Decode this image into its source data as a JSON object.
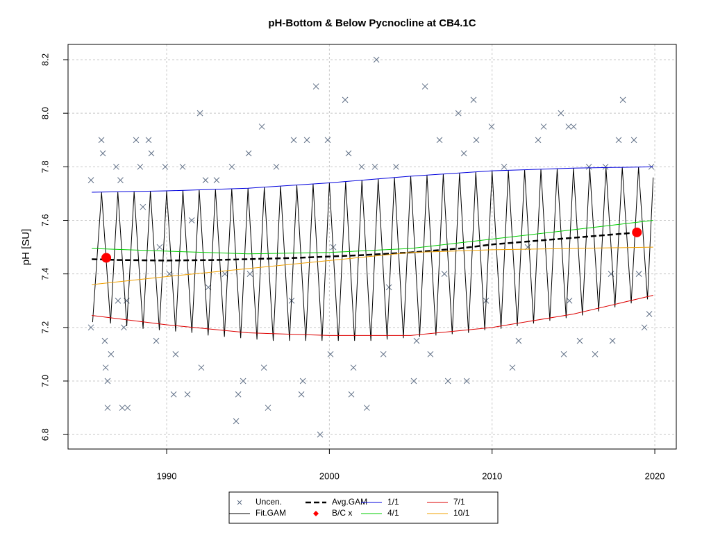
{
  "chart_data": {
    "type": "scatter",
    "title": "pH-Bottom & Below Pycnocline at CB4.1C",
    "y_label": "pH [SU]",
    "xlim": [
      1983.94,
      2021.32
    ],
    "ylim": [
      6.746,
      8.257
    ],
    "xticks": [
      1990,
      2000,
      2010,
      2020
    ],
    "yticks": [
      6.8,
      {
        "value": 7,
        "label": "7.0"
      },
      7.2,
      7.4,
      7.6,
      7.8,
      {
        "value": 8,
        "label": "8.0"
      },
      8.2
    ],
    "grid": true,
    "legend": "bottom",
    "series": [
      {
        "name": "Uncen.",
        "type": "scatter",
        "marker": "x",
        "color": "#5f6f86",
        "x": [
          1985.35,
          1985.35,
          1985.99,
          1986.08,
          1986.25,
          1986.37,
          1986.2,
          1986.58,
          1986.9,
          1987.16,
          1987.37,
          1987.54,
          1988.12,
          1988.37,
          1988.54,
          1988.89,
          1989.06,
          1989.36,
          1989.91,
          1990.17,
          1990.43,
          1990.55,
          1990.98,
          1991.28,
          1991.54,
          1992.13,
          1992.39,
          1993.07,
          1993.58,
          1994.01,
          1994.4,
          1994.7,
          1995.04,
          1995.85,
          1995.98,
          1996.74,
          1997.81,
          1998.28,
          1998.37,
          1998.62,
          1999.9,
          2000.07,
          1999.43,
          2002.89,
          2005.88,
          1999.18,
          1992.05,
          1994.27,
          1986.37,
          1987.27,
          1987.6,
          1996.23,
          2002.3,
          2000.97,
          2001.18,
          2001.35,
          2001.48,
          2001.99,
          2002.8,
          2003.32,
          2004.1,
          2005.19,
          2005.36,
          2006.21,
          2006.77,
          2007.29,
          2007.93,
          2008.27,
          2008.44,
          2008.86,
          2009.03,
          2009.97,
          2010.74,
          2011.25,
          2011.63,
          2012.83,
          2013.17,
          2014.23,
          2014.7,
          2014.41,
          2015.01,
          2015.39,
          2015.95,
          2016.33,
          2016.97,
          2017.4,
          2017.78,
          2018.04,
          2018.72,
          2019.02,
          2019.36,
          2019.66,
          2019.79,
          1987.01,
          1989.57,
          1992.56,
          1995.12,
          1997.68,
          2000.24,
          2003.66,
          2007.07,
          2009.63,
          2012.19,
          2014.75,
          2017.31
        ],
        "values": [
          7.75,
          7.2,
          7.9,
          7.85,
          7.05,
          7.0,
          7.15,
          7.1,
          7.8,
          7.75,
          7.2,
          7.3,
          7.9,
          7.8,
          7.65,
          7.9,
          7.85,
          7.15,
          7.8,
          7.4,
          6.95,
          7.1,
          7.8,
          6.95,
          7.6,
          7.05,
          7.75,
          7.75,
          7.4,
          7.8,
          6.95,
          7.0,
          7.85,
          7.95,
          7.05,
          7.8,
          7.9,
          6.95,
          7.0,
          7.9,
          7.9,
          7.1,
          6.8,
          8.2,
          8.1,
          8.1,
          8.0,
          6.85,
          6.9,
          6.9,
          6.9,
          6.9,
          6.9,
          8.05,
          7.85,
          6.95,
          7.05,
          7.8,
          7.8,
          7.1,
          7.8,
          7.0,
          7.15,
          7.1,
          7.9,
          7.0,
          8.0,
          7.85,
          7.0,
          8.05,
          7.9,
          7.95,
          7.8,
          7.05,
          7.15,
          7.9,
          7.95,
          8.0,
          7.95,
          7.1,
          7.95,
          7.15,
          7.8,
          7.1,
          7.8,
          7.15,
          7.9,
          8.05,
          7.9,
          7.4,
          7.2,
          7.25,
          7.8,
          7.3,
          7.5,
          7.35,
          7.4,
          7.3,
          7.5,
          7.35,
          7.4,
          7.3,
          7.5,
          7.3,
          7.4
        ]
      },
      {
        "name": "Fit.GAM",
        "type": "line",
        "width": 1,
        "color": "#000000",
        "x": [
          1985.45,
          1986,
          1986.55,
          1987,
          1987.55,
          1988,
          1988.55,
          1989,
          1989.55,
          1990,
          1990.55,
          1991,
          1991.55,
          1992,
          1992.55,
          1993,
          1993.55,
          1994,
          1994.55,
          1995,
          1995.55,
          1996,
          1996.55,
          1997,
          1997.55,
          1998,
          1998.55,
          1999,
          1999.55,
          2000,
          2000.55,
          2001,
          2001.55,
          2002,
          2002.55,
          2003,
          2003.55,
          2004,
          2004.55,
          2005,
          2005.55,
          2006,
          2006.55,
          2007,
          2007.55,
          2008,
          2008.55,
          2009,
          2009.55,
          2010,
          2010.55,
          2011,
          2011.55,
          2012,
          2012.55,
          2013,
          2013.55,
          2014,
          2014.55,
          2015,
          2015.55,
          2016,
          2016.55,
          2017,
          2017.55,
          2018,
          2018.55,
          2019,
          2019.55,
          2019.9
        ],
        "values": [
          7.22,
          7.705,
          7.215,
          7.706,
          7.205,
          7.707,
          7.195,
          7.709,
          7.19,
          7.71,
          7.185,
          7.712,
          7.18,
          7.714,
          7.17,
          7.716,
          7.165,
          7.718,
          7.16,
          7.72,
          7.155,
          7.724,
          7.15,
          7.728,
          7.15,
          7.732,
          7.15,
          7.736,
          7.15,
          7.74,
          7.15,
          7.745,
          7.15,
          7.75,
          7.15,
          7.755,
          7.155,
          7.76,
          7.16,
          7.765,
          7.165,
          7.769,
          7.17,
          7.773,
          7.175,
          7.777,
          7.18,
          7.781,
          7.19,
          7.785,
          7.195,
          7.787,
          7.205,
          7.789,
          7.215,
          7.791,
          7.225,
          7.793,
          7.235,
          7.795,
          7.245,
          7.796,
          7.26,
          7.797,
          7.275,
          7.798,
          7.29,
          7.799,
          7.305,
          7.76
        ]
      },
      {
        "name": "Avg.GAM",
        "type": "line",
        "width": 2.5,
        "dash": true,
        "color": "#000000",
        "x": [
          1985.4,
          1987,
          1990,
          1993,
          1995,
          1998,
          2000,
          2002,
          2005,
          2008,
          2010,
          2013,
          2015,
          2017,
          2019
        ],
        "values": [
          7.455,
          7.452,
          7.45,
          7.452,
          7.455,
          7.46,
          7.465,
          7.47,
          7.48,
          7.495,
          7.51,
          7.525,
          7.535,
          7.545,
          7.555
        ]
      },
      {
        "name": "B/C x",
        "type": "scatter",
        "marker": "dot",
        "color": "#ff0000",
        "x": [
          1986.29,
          2018.9
        ],
        "values": [
          7.46,
          7.555
        ]
      },
      {
        "name": "1/1",
        "type": "line",
        "width": 1,
        "color": "#0000dd",
        "x": [
          1985.4,
          1990,
          1995,
          2000,
          2005,
          2010,
          2015,
          2019.9
        ],
        "values": [
          7.705,
          7.71,
          7.72,
          7.74,
          7.765,
          7.785,
          7.795,
          7.8
        ]
      },
      {
        "name": "4/1",
        "type": "line",
        "width": 1,
        "color": "#00cc00",
        "x": [
          1985.4,
          1990,
          1995,
          2000,
          2005,
          2010,
          2015,
          2019.9
        ],
        "values": [
          7.495,
          7.485,
          7.475,
          7.48,
          7.495,
          7.53,
          7.565,
          7.6
        ]
      },
      {
        "name": "7/1",
        "type": "line",
        "width": 1,
        "color": "#dd0000",
        "x": [
          1985.4,
          1990,
          1995,
          2000,
          2005,
          2010,
          2015,
          2019.9
        ],
        "values": [
          7.245,
          7.21,
          7.18,
          7.17,
          7.17,
          7.2,
          7.25,
          7.32
        ]
      },
      {
        "name": "10/1",
        "type": "line",
        "width": 1,
        "color": "#f0a000",
        "x": [
          1985.4,
          1990,
          1995,
          2000,
          2005,
          2010,
          2015,
          2019.9
        ],
        "values": [
          7.36,
          7.39,
          7.42,
          7.45,
          7.48,
          7.49,
          7.495,
          7.5
        ]
      }
    ]
  }
}
